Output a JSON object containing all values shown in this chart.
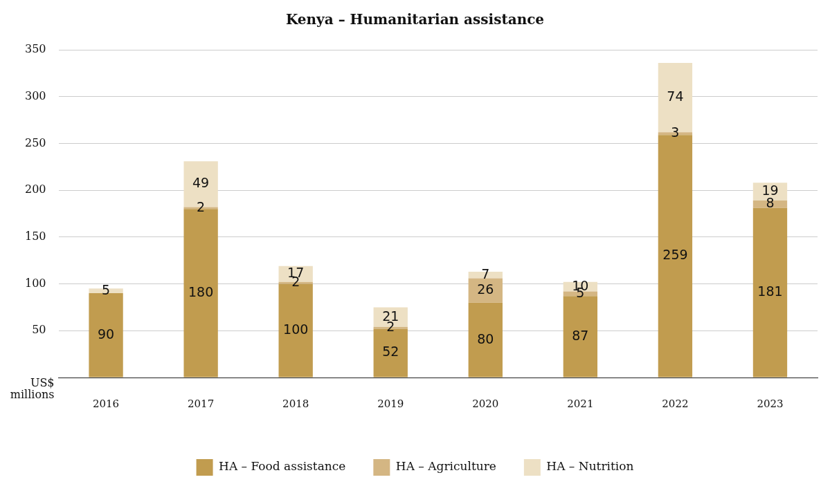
{
  "chart_data": {
    "type": "bar",
    "title": "Kenya – Humanitarian assistance",
    "ylabel": "US$ millions",
    "categories": [
      "2016",
      "2017",
      "2018",
      "2019",
      "2020",
      "2021",
      "2022",
      "2023"
    ],
    "series": [
      {
        "name": "HA – Food assistance",
        "color": "#c19c4f",
        "values": [
          90,
          180,
          100,
          52,
          80,
          87,
          259,
          181
        ]
      },
      {
        "name": "HA – Agriculture",
        "color": "#d4b683",
        "values": [
          null,
          2,
          2,
          2,
          26,
          5,
          3,
          8
        ]
      },
      {
        "name": "HA – Nutrition",
        "color": "#ede0c4",
        "values": [
          5,
          49,
          17,
          21,
          7,
          10,
          74,
          19
        ]
      }
    ],
    "stacked": true,
    "ylim": [
      0,
      350
    ],
    "yticks": [
      {
        "value": 0,
        "label": null
      },
      50,
      100,
      150,
      200,
      250,
      300,
      350
    ],
    "grid": "y",
    "legend": "bottom",
    "data_labels": true
  }
}
